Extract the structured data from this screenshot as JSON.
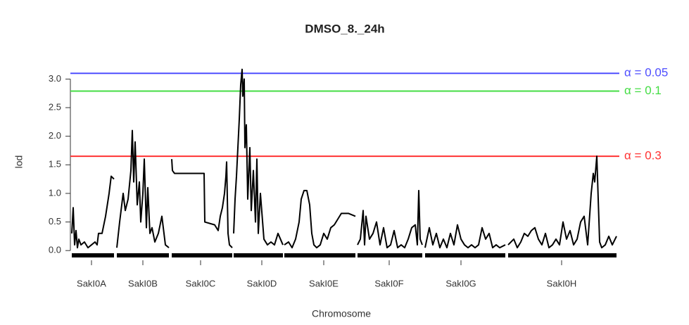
{
  "chart_data": {
    "type": "line",
    "title": "DMSO_8._24h",
    "x_label": "Chromosome",
    "y_label": "lod",
    "xlim": [
      0,
      780
    ],
    "ylim": [
      -0.17,
      3.3
    ],
    "xticks": [
      {
        "value": 30,
        "label": "SakI0A"
      },
      {
        "value": 103,
        "label": "SakI0B"
      },
      {
        "value": 185,
        "label": "SakI0C"
      },
      {
        "value": 272,
        "label": "SakI0D"
      },
      {
        "value": 360,
        "label": "SakI0E"
      },
      {
        "value": 453,
        "label": "SakI0F"
      },
      {
        "value": 555,
        "label": "SakI0G"
      },
      {
        "value": 698,
        "label": "SakI0H"
      }
    ],
    "yticks": [
      {
        "value": 0,
        "label": "0.0"
      },
      0.5,
      {
        "value": 1,
        "label": "1.0"
      },
      1.5,
      {
        "value": 2,
        "label": "2.0"
      },
      2.5,
      {
        "value": 3,
        "label": "3.0"
      }
    ],
    "thresholds": [
      {
        "value": 3.1,
        "label": "α = 0.05",
        "color": "#4f4fff"
      },
      {
        "value": 2.79,
        "label": "α = 0.1",
        "color": "#44dd44"
      },
      {
        "value": 1.65,
        "label": "α = 0.3",
        "color": "#ff3333"
      }
    ],
    "series": [
      {
        "color": "#000000",
        "x": [
          2,
          4,
          6,
          8,
          10,
          12,
          15,
          20,
          25,
          30,
          35,
          38,
          40,
          45,
          50,
          55,
          58,
          62
        ],
        "values": [
          0.3,
          0.75,
          0.1,
          0.35,
          0.05,
          0.2,
          0.1,
          0.15,
          0.05,
          0.1,
          0.15,
          0.1,
          0.3,
          0.3,
          0.6,
          1.0,
          1.3,
          1.25
        ]
      },
      {
        "color": "#000000",
        "x": [
          66,
          70,
          75,
          78,
          82,
          86,
          88,
          90,
          92,
          95,
          98,
          100,
          103,
          105,
          108,
          110,
          113,
          116,
          120,
          125,
          130,
          135,
          140
        ],
        "values": [
          0.05,
          0.5,
          1.0,
          0.7,
          0.9,
          1.4,
          2.1,
          1.2,
          1.9,
          0.8,
          1.2,
          0.5,
          1.0,
          1.6,
          0.4,
          1.1,
          0.3,
          0.4,
          0.15,
          0.3,
          0.6,
          0.1,
          0.05
        ]
      },
      {
        "color": "#000000",
        "x": [
          144,
          145,
          148,
          190,
          191,
          205,
          210,
          213,
          216,
          219,
          221,
          222,
          224,
          226,
          230
        ],
        "values": [
          1.6,
          1.4,
          1.35,
          1.35,
          0.5,
          0.45,
          0.35,
          0.6,
          0.75,
          1.0,
          1.3,
          1.55,
          0.3,
          0.1,
          0.05
        ]
      },
      {
        "color": "#000000",
        "x": [
          232,
          234,
          236,
          238,
          240,
          242,
          244,
          245,
          247,
          248,
          250,
          252,
          255,
          257,
          260,
          263,
          265,
          267,
          270,
          275,
          280,
          285,
          290,
          295,
          302
        ],
        "values": [
          0.3,
          0.9,
          1.3,
          1.8,
          2.3,
          2.9,
          3.17,
          2.7,
          3.0,
          1.8,
          2.2,
          0.9,
          1.8,
          0.7,
          1.4,
          0.5,
          1.6,
          0.3,
          1.0,
          0.2,
          0.1,
          0.15,
          0.1,
          0.3,
          0.1
        ]
      },
      {
        "color": "#000000",
        "x": [
          304,
          310,
          315,
          320,
          325,
          328,
          332,
          336,
          340,
          343,
          346,
          350,
          355,
          360,
          365,
          370,
          375,
          380,
          385,
          395,
          405
        ],
        "values": [
          0.1,
          0.15,
          0.05,
          0.2,
          0.5,
          0.9,
          1.05,
          1.05,
          0.8,
          0.3,
          0.1,
          0.05,
          0.1,
          0.3,
          0.2,
          0.4,
          0.45,
          0.55,
          0.65,
          0.65,
          0.6
        ]
      },
      {
        "color": "#000000",
        "x": [
          408,
          412,
          416,
          418,
          420,
          425,
          430,
          435,
          440,
          445,
          450,
          455,
          460,
          465,
          470,
          475,
          480,
          485,
          490,
          493,
          495,
          497,
          500
        ],
        "values": [
          0.1,
          0.2,
          0.7,
          0.1,
          0.6,
          0.2,
          0.3,
          0.5,
          0.1,
          0.4,
          0.05,
          0.1,
          0.35,
          0.05,
          0.1,
          0.05,
          0.2,
          0.4,
          0.45,
          0.1,
          1.05,
          0.2,
          0.1
        ]
      },
      {
        "color": "#000000",
        "x": [
          504,
          510,
          515,
          520,
          525,
          530,
          535,
          540,
          545,
          550,
          555,
          560,
          565,
          570,
          575,
          580,
          585,
          590,
          595,
          600,
          605,
          610,
          618
        ],
        "values": [
          0.05,
          0.4,
          0.1,
          0.3,
          0.05,
          0.2,
          0.05,
          0.3,
          0.1,
          0.45,
          0.2,
          0.1,
          0.05,
          0.1,
          0.05,
          0.1,
          0.4,
          0.2,
          0.3,
          0.05,
          0.1,
          0.05,
          0.1
        ]
      },
      {
        "color": "#000000",
        "x": [
          622,
          630,
          635,
          640,
          645,
          650,
          655,
          660,
          665,
          670,
          675,
          680,
          685,
          690,
          695,
          700,
          705,
          710,
          715,
          720,
          725,
          730,
          735,
          740,
          743,
          745,
          748,
          750,
          752,
          755,
          760,
          765,
          770,
          776
        ],
        "values": [
          0.1,
          0.2,
          0.05,
          0.15,
          0.3,
          0.25,
          0.35,
          0.4,
          0.2,
          0.1,
          0.3,
          0.05,
          0.1,
          0.2,
          0.1,
          0.5,
          0.2,
          0.35,
          0.1,
          0.2,
          0.5,
          0.6,
          0.1,
          1.0,
          1.35,
          1.2,
          1.65,
          0.9,
          0.15,
          0.05,
          0.1,
          0.25,
          0.1,
          0.25
        ]
      }
    ]
  }
}
